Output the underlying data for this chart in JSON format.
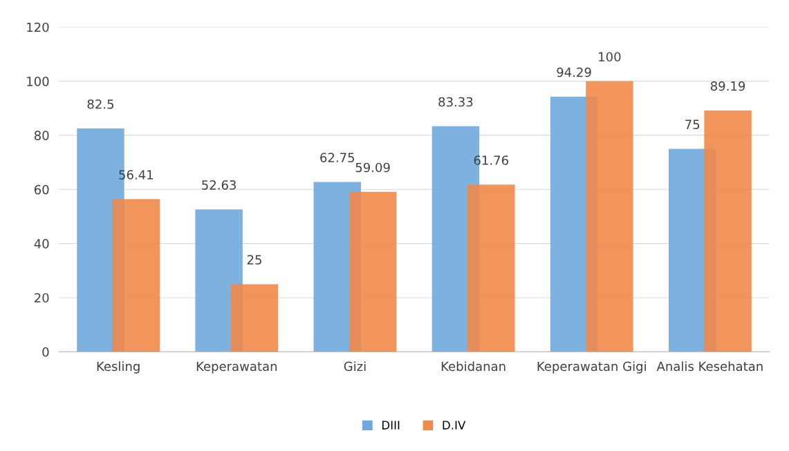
{
  "chart_data": {
    "type": "bar",
    "categories": [
      "Kesling",
      "Keperawatan",
      "Gizi",
      "Kebidanan",
      "Keperawatan Gigi",
      "Analis Kesehatan"
    ],
    "series": [
      {
        "name": "DIII",
        "color": "#6fa8dc",
        "values": [
          82.5,
          52.63,
          62.75,
          83.33,
          94.29,
          75
        ]
      },
      {
        "name": "D.IV",
        "color": "#f08a4b",
        "values": [
          56.41,
          25,
          59.09,
          61.76,
          100,
          89.19
        ]
      }
    ],
    "ylim": [
      0,
      120
    ],
    "yticks": [
      0,
      20,
      40,
      60,
      80,
      100,
      120
    ],
    "grid": "y",
    "legend": "bottom",
    "data_labels": true
  }
}
